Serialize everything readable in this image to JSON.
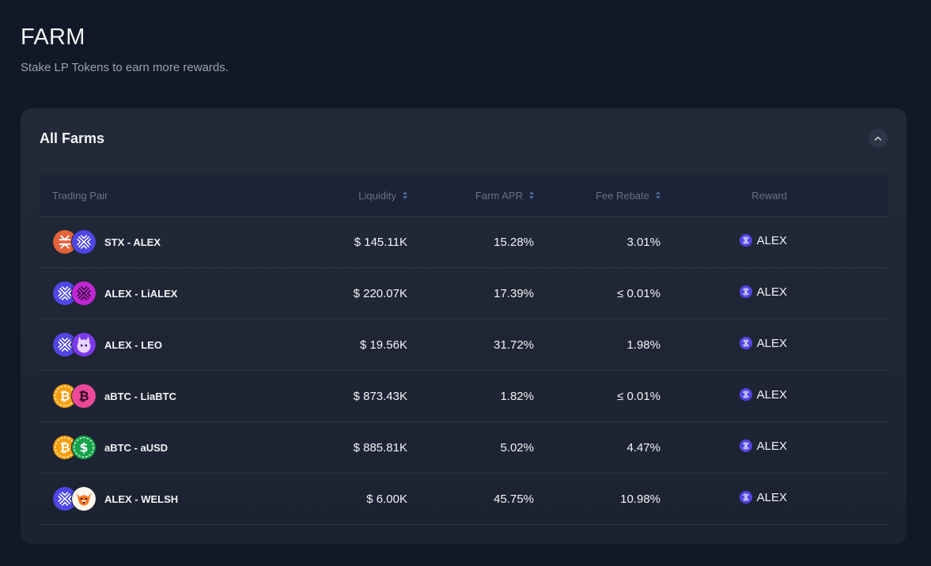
{
  "page": {
    "title": "FARM",
    "subtitle": "Stake LP Tokens to earn more rewards."
  },
  "card": {
    "title": "All Farms"
  },
  "table": {
    "headers": {
      "pair": "Trading Pair",
      "liquidity": "Liquidity",
      "apr": "Farm APR",
      "fee": "Fee Rebate",
      "reward": "Reward"
    },
    "rows": [
      {
        "pair": "STX - ALEX",
        "tokens": [
          "stx",
          "alex"
        ],
        "liquidity": "$ 145.11K",
        "apr": "15.28%",
        "fee": "3.01%",
        "reward": "ALEX"
      },
      {
        "pair": "ALEX - LiALEX",
        "tokens": [
          "alex",
          "lialex"
        ],
        "liquidity": "$ 220.07K",
        "apr": "17.39%",
        "fee": "≤ 0.01%",
        "reward": "ALEX"
      },
      {
        "pair": "ALEX - LEO",
        "tokens": [
          "alex",
          "leo"
        ],
        "liquidity": "$ 19.56K",
        "apr": "31.72%",
        "fee": "1.98%",
        "reward": "ALEX"
      },
      {
        "pair": "aBTC - LiaBTC",
        "tokens": [
          "abtc",
          "liabtc"
        ],
        "liquidity": "$ 873.43K",
        "apr": "1.82%",
        "fee": "≤ 0.01%",
        "reward": "ALEX"
      },
      {
        "pair": "aBTC - aUSD",
        "tokens": [
          "abtc",
          "ausd"
        ],
        "liquidity": "$ 885.81K",
        "apr": "5.02%",
        "fee": "4.47%",
        "reward": "ALEX"
      },
      {
        "pair": "ALEX - WELSH",
        "tokens": [
          "alex",
          "welsh"
        ],
        "liquidity": "$ 6.00K",
        "apr": "45.75%",
        "fee": "10.98%",
        "reward": "ALEX"
      }
    ]
  },
  "colors": {
    "background": "#111827",
    "card": "#222938",
    "stx": "#e4623a",
    "alex": "#4f46e5",
    "lialex": "#c026d3",
    "abtc": "#f59e0b",
    "liabtc": "#ec4899",
    "ausd": "#16a34a",
    "leo": "#7c3aed",
    "welsh": "#f97316"
  },
  "icons": {
    "collapse": "chevron-up-icon",
    "sort": "sort-icon",
    "reward": "alex-token-icon"
  }
}
